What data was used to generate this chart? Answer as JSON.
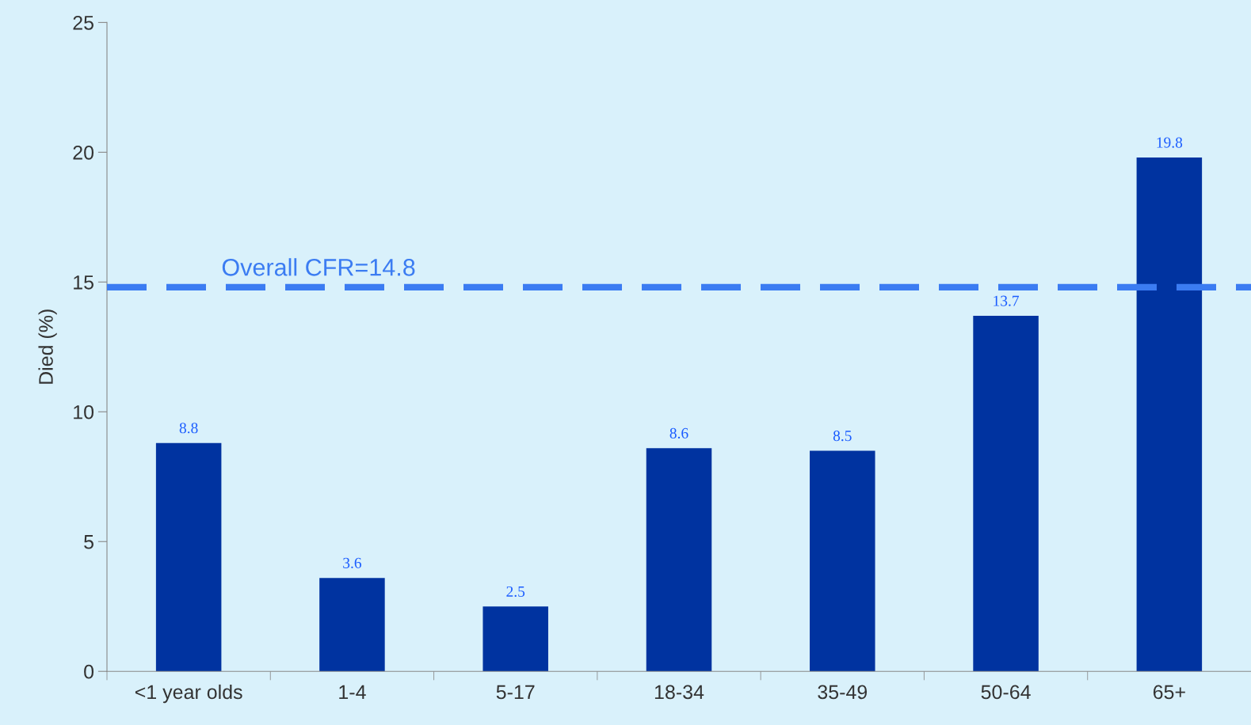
{
  "chart_data": {
    "type": "bar",
    "ylabel": "Died (%)",
    "categories": [
      "<1 year olds",
      "1-4",
      "5-17",
      "18-34",
      "35-49",
      "50-64",
      "65+"
    ],
    "values": [
      8.8,
      3.6,
      2.5,
      8.6,
      8.5,
      13.7,
      19.8
    ],
    "color": "#0033a0",
    "data_labels": true,
    "ylim": [
      0,
      25
    ],
    "yticks": [
      0,
      5,
      10,
      15,
      20,
      25
    ],
    "ref_lines": [
      {
        "axis": "y",
        "value": 14.8,
        "label": "Overall CFR=14.8",
        "color": "#3b7cf2",
        "line_style": "dashed"
      }
    ],
    "grid": false
  }
}
